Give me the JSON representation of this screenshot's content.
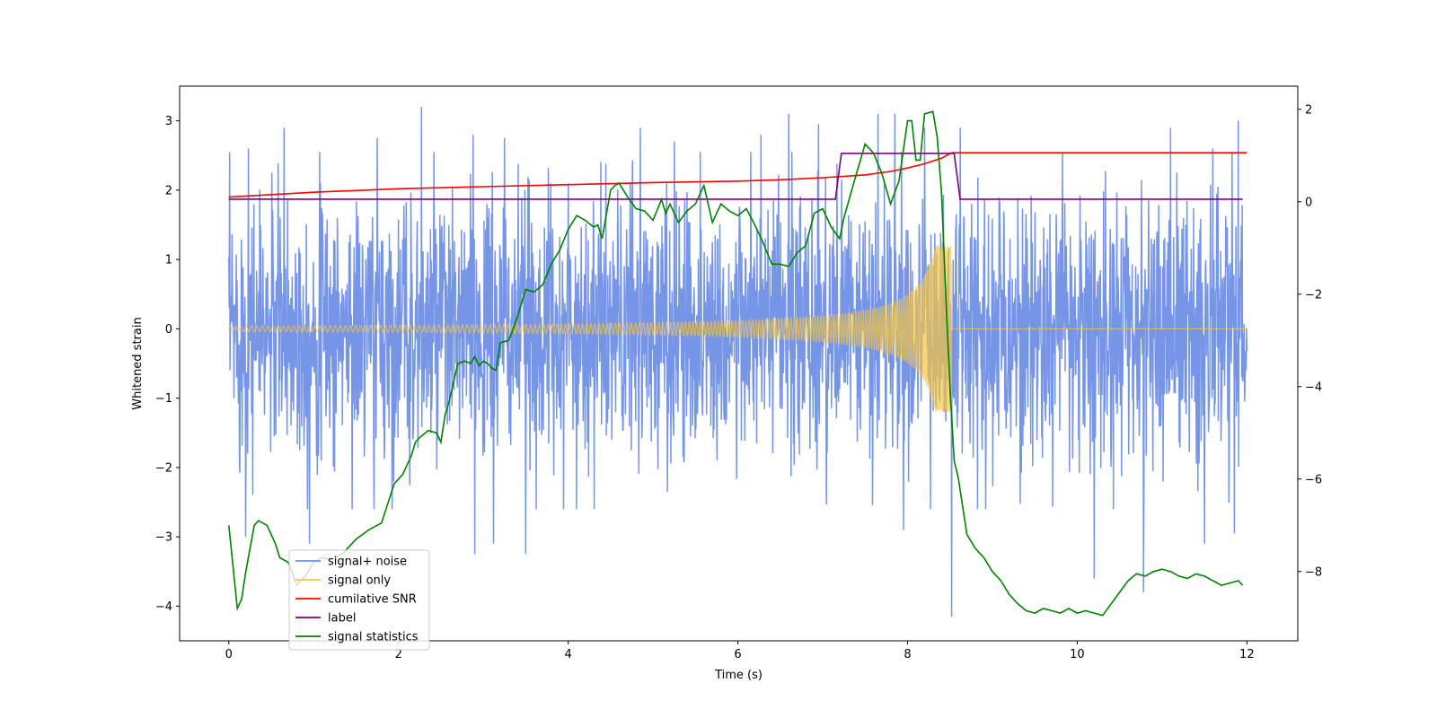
{
  "chart_data": {
    "type": "line",
    "title": "",
    "xlabel": "Time (s)",
    "ylabel": "Whitened strain",
    "y2label": "",
    "xlim": [
      -0.58,
      12.6
    ],
    "ylim": [
      -4.5,
      3.5
    ],
    "y2lim": [
      -9.5,
      2.5
    ],
    "xticks": [
      0,
      2,
      4,
      6,
      8,
      10,
      12
    ],
    "yticks": [
      -4,
      -3,
      -2,
      -1,
      0,
      1,
      2,
      3
    ],
    "y2ticks": [
      -8,
      -6,
      -4,
      -2,
      0,
      2
    ],
    "grid": false,
    "legend_position": "lower-left",
    "series": [
      {
        "name": "signal+ noise",
        "color": "#6f8fe6",
        "axis": "left",
        "style": "noise",
        "t_range": [
          0,
          12
        ],
        "envelope_typical": 1.9,
        "peaks": [
          {
            "t": 0.23,
            "v": 2.6
          },
          {
            "t": 0.2,
            "v": -3.0
          },
          {
            "t": 0.65,
            "v": 2.9
          },
          {
            "t": 0.95,
            "v": -3.1
          },
          {
            "t": 1.75,
            "v": 2.75
          },
          {
            "t": 2.27,
            "v": 3.2
          },
          {
            "t": 2.88,
            "v": 2.8
          },
          {
            "t": 2.9,
            "v": -3.25
          },
          {
            "t": 3.12,
            "v": -3.1
          },
          {
            "t": 3.25,
            "v": 2.75
          },
          {
            "t": 3.5,
            "v": -3.25
          },
          {
            "t": 4.85,
            "v": 2.9
          },
          {
            "t": 5.25,
            "v": 2.7
          },
          {
            "t": 6.27,
            "v": 2.8
          },
          {
            "t": 6.6,
            "v": 3.1
          },
          {
            "t": 6.95,
            "v": 2.95
          },
          {
            "t": 7.65,
            "v": 3.1
          },
          {
            "t": 7.85,
            "v": 3.1
          },
          {
            "t": 7.95,
            "v": -2.9
          },
          {
            "t": 8.2,
            "v": 2.9
          },
          {
            "t": 8.52,
            "v": -4.15
          },
          {
            "t": 8.62,
            "v": 2.9
          },
          {
            "t": 10.2,
            "v": -3.6
          },
          {
            "t": 10.78,
            "v": -3.8
          },
          {
            "t": 11.1,
            "v": 2.9
          },
          {
            "t": 11.6,
            "v": 2.6
          },
          {
            "t": 11.9,
            "v": 3.0
          },
          {
            "t": 11.5,
            "v": -3.1
          },
          {
            "t": 11.85,
            "v": -2.95
          }
        ]
      },
      {
        "name": "signal only",
        "color": "#f5c542",
        "axis": "left",
        "style": "chirp",
        "t_range": [
          0,
          12
        ],
        "merger_time": 8.52,
        "amplitude_at_start": 0.04,
        "amplitude_at_merger": 1.2
      },
      {
        "name": "cumilative SNR",
        "color": "#ff0000",
        "axis": "left",
        "x": [
          0,
          1,
          2,
          3,
          4,
          5,
          6,
          6.5,
          7,
          7.5,
          7.8,
          8.0,
          8.2,
          8.4,
          8.52,
          8.56,
          12
        ],
        "y": [
          1.9,
          1.97,
          2.02,
          2.05,
          2.08,
          2.11,
          2.13,
          2.15,
          2.18,
          2.22,
          2.27,
          2.32,
          2.38,
          2.46,
          2.54,
          2.54,
          2.54
        ]
      },
      {
        "name": "label",
        "color": "#800080",
        "axis": "left",
        "x": [
          0,
          7.15,
          7.22,
          8.55,
          8.62,
          11.95
        ],
        "y": [
          1.87,
          1.87,
          2.53,
          2.53,
          1.87,
          1.87
        ]
      },
      {
        "name": "signal statistics",
        "color": "#008000",
        "axis": "right",
        "x": [
          0,
          0.1,
          0.15,
          0.2,
          0.3,
          0.35,
          0.45,
          0.55,
          0.6,
          0.7,
          0.8,
          0.9,
          1.0,
          1.1,
          1.2,
          1.35,
          1.5,
          1.65,
          1.8,
          1.95,
          2.05,
          2.15,
          2.2,
          2.25,
          2.35,
          2.45,
          2.5,
          2.55,
          2.6,
          2.7,
          2.78,
          2.85,
          2.9,
          2.95,
          3.0,
          3.05,
          3.1,
          3.15,
          3.2,
          3.3,
          3.4,
          3.5,
          3.6,
          3.7,
          3.8,
          3.9,
          4.0,
          4.05,
          4.1,
          4.2,
          4.3,
          4.35,
          4.4,
          4.5,
          4.55,
          4.6,
          4.7,
          4.8,
          4.9,
          5.0,
          5.1,
          5.15,
          5.2,
          5.3,
          5.4,
          5.5,
          5.6,
          5.7,
          5.8,
          5.9,
          6.0,
          6.1,
          6.2,
          6.3,
          6.4,
          6.5,
          6.6,
          6.7,
          6.8,
          6.9,
          7.0,
          7.1,
          7.2,
          7.25,
          7.35,
          7.5,
          7.6,
          7.7,
          7.8,
          7.9,
          8.0,
          8.05,
          8.1,
          8.15,
          8.2,
          8.3,
          8.35,
          8.4,
          8.45,
          8.5,
          8.55,
          8.6,
          8.7,
          8.8,
          8.9,
          9.0,
          9.1,
          9.2,
          9.3,
          9.4,
          9.5,
          9.6,
          9.7,
          9.8,
          9.9,
          10.0,
          10.1,
          10.2,
          10.3,
          10.4,
          10.5,
          10.6,
          10.7,
          10.8,
          10.9,
          11.0,
          11.1,
          11.2,
          11.3,
          11.4,
          11.5,
          11.6,
          11.7,
          11.8,
          11.9,
          11.95
        ],
        "y": [
          -7.0,
          -8.8,
          -8.6,
          -8.0,
          -7.0,
          -6.9,
          -7.0,
          -7.4,
          -7.7,
          -7.8,
          -8.3,
          -8.1,
          -7.8,
          -7.7,
          -7.75,
          -7.6,
          -7.3,
          -7.1,
          -6.95,
          -6.1,
          -5.9,
          -5.5,
          -5.2,
          -5.1,
          -4.95,
          -5.0,
          -5.2,
          -4.6,
          -4.3,
          -3.5,
          -3.45,
          -3.5,
          -3.35,
          -3.55,
          -3.45,
          -3.5,
          -3.6,
          -3.65,
          -3.05,
          -3.0,
          -2.5,
          -1.9,
          -1.95,
          -1.8,
          -1.35,
          -1.05,
          -0.6,
          -0.45,
          -0.3,
          -0.4,
          -0.55,
          -0.5,
          -0.8,
          0.25,
          0.35,
          0.4,
          0.1,
          -0.15,
          -0.2,
          -0.4,
          0.05,
          -0.25,
          -0.05,
          -0.45,
          -0.2,
          -0.05,
          0.35,
          -0.45,
          -0.05,
          -0.2,
          -0.3,
          -0.15,
          -0.5,
          -0.9,
          -1.35,
          -1.35,
          -1.4,
          -1.1,
          -0.95,
          -0.25,
          -0.15,
          -0.55,
          -0.8,
          -0.35,
          0.3,
          1.25,
          1.05,
          0.6,
          -0.05,
          0.45,
          1.75,
          1.75,
          0.9,
          0.9,
          1.9,
          1.95,
          1.4,
          0.2,
          -2.0,
          -4.0,
          -5.6,
          -6.0,
          -7.2,
          -7.5,
          -7.7,
          -8.0,
          -8.2,
          -8.5,
          -8.7,
          -8.85,
          -8.9,
          -8.8,
          -8.85,
          -8.9,
          -8.8,
          -8.9,
          -8.85,
          -8.9,
          -8.95,
          -8.7,
          -8.45,
          -8.2,
          -8.05,
          -8.1,
          -8.0,
          -7.95,
          -8.0,
          -8.1,
          -8.15,
          -8.05,
          -8.1,
          -8.2,
          -8.3,
          -8.25,
          -8.2,
          -8.3
        ]
      }
    ]
  }
}
